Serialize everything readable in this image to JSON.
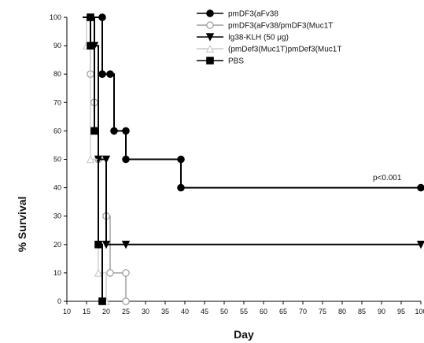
{
  "chart_data": {
    "type": "line",
    "subtype": "kaplan-meier-step",
    "xlabel": "Day",
    "ylabel": "% Survival",
    "xlim": [
      10,
      100
    ],
    "ylim": [
      0,
      100
    ],
    "x_ticks": [
      10,
      15,
      20,
      25,
      30,
      35,
      40,
      45,
      50,
      55,
      60,
      65,
      70,
      75,
      80,
      85,
      90,
      95,
      100
    ],
    "y_ticks": [
      0,
      10,
      20,
      30,
      40,
      50,
      60,
      70,
      80,
      90,
      100
    ],
    "grid": false,
    "legend_position": "top-right",
    "annotation": "p<0.001",
    "series": [
      {
        "name": "pmDF3(aFv38",
        "color": "#000000",
        "marker": "filled-circle",
        "line_style": "solid",
        "points": [
          [
            14,
            100
          ],
          [
            19,
            100
          ],
          [
            19,
            80
          ],
          [
            22,
            80
          ],
          [
            22,
            60
          ],
          [
            25,
            60
          ],
          [
            25,
            50
          ],
          [
            39,
            50
          ],
          [
            39,
            40
          ],
          [
            100,
            40
          ]
        ],
        "marker_points": [
          [
            19,
            100
          ],
          [
            19,
            80
          ],
          [
            21,
            80
          ],
          [
            22,
            60
          ],
          [
            25,
            60
          ],
          [
            25,
            50
          ],
          [
            39,
            50
          ],
          [
            39,
            40
          ],
          [
            100,
            40
          ]
        ]
      },
      {
        "name": "pmDF3(aFv38/pmDF3(Muc1T",
        "color": "#999999",
        "marker": "open-circle",
        "line_style": "solid",
        "points": [
          [
            14,
            100
          ],
          [
            16,
            100
          ],
          [
            16,
            80
          ],
          [
            17,
            80
          ],
          [
            17,
            70
          ],
          [
            18,
            70
          ],
          [
            18,
            50
          ],
          [
            20,
            50
          ],
          [
            20,
            30
          ],
          [
            21,
            30
          ],
          [
            21,
            10
          ],
          [
            25,
            10
          ],
          [
            25,
            0
          ]
        ],
        "marker_points": [
          [
            16,
            80
          ],
          [
            17,
            70
          ],
          [
            18,
            50
          ],
          [
            20,
            30
          ],
          [
            21,
            10
          ],
          [
            25,
            10
          ],
          [
            25,
            0
          ]
        ]
      },
      {
        "name": "Ig38-KLH (50 μg)",
        "color": "#000000",
        "marker": "filled-triangle-down",
        "line_style": "solid",
        "points": [
          [
            14,
            100
          ],
          [
            17,
            100
          ],
          [
            17,
            90
          ],
          [
            18,
            90
          ],
          [
            18,
            50
          ],
          [
            20,
            50
          ],
          [
            20,
            20
          ],
          [
            100,
            20
          ]
        ],
        "marker_points": [
          [
            17,
            90
          ],
          [
            18,
            50
          ],
          [
            20,
            50
          ],
          [
            20,
            20
          ],
          [
            25,
            20
          ],
          [
            100,
            20
          ]
        ]
      },
      {
        "name": "(pmDef3(Muc1T)pmDef3(Muc1T",
        "color": "#cccccc",
        "marker": "open-triangle-up",
        "line_style": "solid",
        "points": [
          [
            14,
            100
          ],
          [
            15,
            100
          ],
          [
            15,
            90
          ],
          [
            16,
            90
          ],
          [
            16,
            50
          ],
          [
            18,
            50
          ],
          [
            18,
            10
          ],
          [
            20,
            10
          ],
          [
            20,
            0
          ]
        ],
        "marker_points": [
          [
            15,
            90
          ],
          [
            16,
            50
          ],
          [
            18,
            10
          ],
          [
            20,
            0
          ]
        ]
      },
      {
        "name": "PBS",
        "color": "#000000",
        "marker": "filled-square",
        "line_style": "solid",
        "points": [
          [
            14,
            100
          ],
          [
            16,
            100
          ],
          [
            16,
            90
          ],
          [
            17,
            90
          ],
          [
            17,
            60
          ],
          [
            18,
            60
          ],
          [
            18,
            20
          ],
          [
            19,
            20
          ],
          [
            19,
            0
          ],
          [
            20,
            0
          ]
        ],
        "marker_points": [
          [
            16,
            100
          ],
          [
            16,
            90
          ],
          [
            17,
            60
          ],
          [
            18,
            20
          ],
          [
            19,
            0
          ]
        ]
      }
    ]
  }
}
